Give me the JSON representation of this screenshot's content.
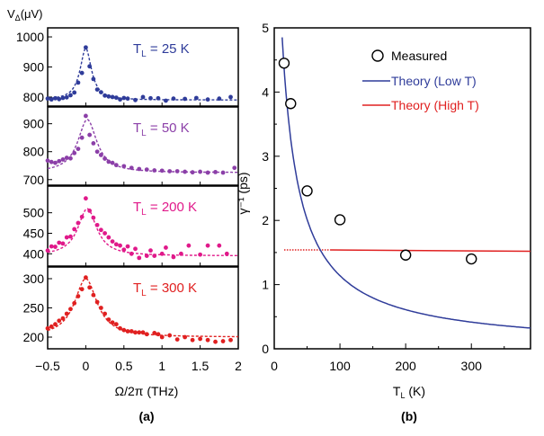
{
  "panel_a": {
    "ylabel_main": "V",
    "ylabel_sub": "Δ",
    "ylabel_unit": "(μV)",
    "xlabel": "Ω/2π (THz)",
    "panel_label": "(a)",
    "x_ticks": [
      "−0.5",
      "0",
      "0.5",
      "1",
      "1.5",
      "2"
    ]
  },
  "panel_b": {
    "ylabel": "γ⁻¹ (ps)",
    "xlabel_main": "T",
    "xlabel_sub": "L",
    "xlabel_unit": " (K)",
    "panel_label": "(b)",
    "x_ticks": [
      "0",
      "100",
      "200",
      "300"
    ],
    "y_ticks": [
      "0",
      "1",
      "2",
      "3",
      "4",
      "5"
    ],
    "legend": {
      "measured": "Measured",
      "low": "Theory (Low T)",
      "high": "Theory (High T)"
    }
  },
  "chart_data": [
    {
      "type": "scatter",
      "title": "T_L = 25 K",
      "label_main": "T",
      "label_sub": "L",
      "label_value": " = 25 K",
      "color": "#2f3c9a",
      "xlabel": "Ω/2π (THz)",
      "ylabel": "V_Δ (μV)",
      "xlim": [
        -0.5,
        2.0
      ],
      "ylim": [
        770,
        1030
      ],
      "y_ticks": [
        800,
        900,
        1000
      ],
      "fit": {
        "base": 790,
        "amp": 172,
        "x0": 0.0,
        "gamma": 0.09
      },
      "points": [
        [
          -0.5,
          795
        ],
        [
          -0.45,
          792
        ],
        [
          -0.4,
          796
        ],
        [
          -0.35,
          793
        ],
        [
          -0.3,
          797
        ],
        [
          -0.25,
          799
        ],
        [
          -0.2,
          806
        ],
        [
          -0.15,
          815
        ],
        [
          -0.1,
          848
        ],
        [
          -0.05,
          880
        ],
        [
          0.0,
          965
        ],
        [
          0.05,
          902
        ],
        [
          0.1,
          860
        ],
        [
          0.15,
          825
        ],
        [
          0.2,
          816
        ],
        [
          0.25,
          805
        ],
        [
          0.3,
          802
        ],
        [
          0.35,
          800
        ],
        [
          0.4,
          798
        ],
        [
          0.45,
          792
        ],
        [
          0.5,
          797
        ],
        [
          0.55,
          795
        ],
        [
          0.65,
          790
        ],
        [
          0.75,
          800
        ],
        [
          0.85,
          796
        ],
        [
          0.95,
          796
        ],
        [
          1.05,
          788
        ],
        [
          1.15,
          795
        ],
        [
          1.3,
          794
        ],
        [
          1.45,
          797
        ],
        [
          1.6,
          792
        ],
        [
          1.75,
          795
        ],
        [
          1.9,
          800
        ]
      ]
    },
    {
      "type": "scatter",
      "title": "T_L = 50 K",
      "label_main": "T",
      "label_sub": "L",
      "label_value": " = 50 K",
      "color": "#8b3fa8",
      "xlabel": "Ω/2π (THz)",
      "ylabel": "V_Δ (μV)",
      "xlim": [
        -0.5,
        2.0
      ],
      "ylim": [
        680,
        960
      ],
      "y_ticks": [
        700,
        800,
        900
      ],
      "fit": {
        "base": 725,
        "amp": 190,
        "x0": 0.02,
        "gamma": 0.15
      },
      "points": [
        [
          -0.5,
          768
        ],
        [
          -0.45,
          763
        ],
        [
          -0.4,
          760
        ],
        [
          -0.35,
          766
        ],
        [
          -0.3,
          772
        ],
        [
          -0.25,
          778
        ],
        [
          -0.2,
          776
        ],
        [
          -0.15,
          795
        ],
        [
          -0.1,
          810
        ],
        [
          -0.05,
          850
        ],
        [
          0.0,
          928
        ],
        [
          0.05,
          860
        ],
        [
          0.1,
          830
        ],
        [
          0.15,
          800
        ],
        [
          0.2,
          788
        ],
        [
          0.25,
          775
        ],
        [
          0.3,
          764
        ],
        [
          0.35,
          760
        ],
        [
          0.4,
          752
        ],
        [
          0.5,
          748
        ],
        [
          0.6,
          742
        ],
        [
          0.7,
          738
        ],
        [
          0.8,
          736
        ],
        [
          0.9,
          733
        ],
        [
          1.0,
          732
        ],
        [
          1.1,
          730
        ],
        [
          1.2,
          730
        ],
        [
          1.3,
          728
        ],
        [
          1.4,
          726
        ],
        [
          1.5,
          728
        ],
        [
          1.6,
          725
        ],
        [
          1.7,
          727
        ],
        [
          1.8,
          725
        ],
        [
          1.95,
          742
        ]
      ]
    },
    {
      "type": "scatter",
      "title": "T_L = 200 K",
      "label_main": "T",
      "label_sub": "L",
      "label_value": " = 200 K",
      "color": "#e0198a",
      "xlabel": "Ω/2π (THz)",
      "ylabel": "V_Δ (μV)",
      "xlim": [
        -0.5,
        2.0
      ],
      "ylim": [
        370,
        565
      ],
      "y_ticks": [
        400,
        450,
        500
      ],
      "fit": {
        "base": 395,
        "amp": 115,
        "x0": 0.02,
        "gamma": 0.15
      },
      "points": [
        [
          -0.5,
          408
        ],
        [
          -0.45,
          418
        ],
        [
          -0.4,
          417
        ],
        [
          -0.35,
          427
        ],
        [
          -0.3,
          425
        ],
        [
          -0.25,
          440
        ],
        [
          -0.2,
          442
        ],
        [
          -0.15,
          460
        ],
        [
          -0.1,
          475
        ],
        [
          -0.05,
          490
        ],
        [
          0.0,
          535
        ],
        [
          0.05,
          505
        ],
        [
          0.1,
          488
        ],
        [
          0.15,
          470
        ],
        [
          0.2,
          458
        ],
        [
          0.25,
          450
        ],
        [
          0.3,
          440
        ],
        [
          0.35,
          430
        ],
        [
          0.4,
          423
        ],
        [
          0.45,
          420
        ],
        [
          0.5,
          410
        ],
        [
          0.55,
          418
        ],
        [
          0.6,
          400
        ],
        [
          0.65,
          412
        ],
        [
          0.7,
          390
        ],
        [
          0.8,
          395
        ],
        [
          0.85,
          408
        ],
        [
          0.9,
          395
        ],
        [
          1.0,
          400
        ],
        [
          1.05,
          415
        ],
        [
          1.15,
          392
        ],
        [
          1.25,
          400
        ],
        [
          1.35,
          420
        ],
        [
          1.5,
          398
        ],
        [
          1.6,
          420
        ],
        [
          1.75,
          420
        ],
        [
          1.85,
          400
        ]
      ]
    },
    {
      "type": "scatter",
      "title": "T_L = 300 K",
      "label_main": "T",
      "label_sub": "L",
      "label_value": " = 300 K",
      "color": "#e02020",
      "xlabel": "Ω/2π (THz)",
      "ylabel": "V_Δ (μV)",
      "xlim": [
        -0.5,
        2.0
      ],
      "ylim": [
        180,
        320
      ],
      "y_ticks": [
        200,
        250,
        300
      ],
      "fit": {
        "base": 200,
        "amp": 100,
        "x0": 0.0,
        "gamma": 0.18
      },
      "points": [
        [
          -0.5,
          215
        ],
        [
          -0.45,
          218
        ],
        [
          -0.4,
          222
        ],
        [
          -0.35,
          228
        ],
        [
          -0.3,
          232
        ],
        [
          -0.25,
          240
        ],
        [
          -0.2,
          248
        ],
        [
          -0.15,
          258
        ],
        [
          -0.1,
          270
        ],
        [
          -0.05,
          282
        ],
        [
          0.0,
          302
        ],
        [
          0.05,
          285
        ],
        [
          0.1,
          272
        ],
        [
          0.15,
          260
        ],
        [
          0.2,
          250
        ],
        [
          0.25,
          240
        ],
        [
          0.3,
          230
        ],
        [
          0.35,
          225
        ],
        [
          0.4,
          222
        ],
        [
          0.45,
          215
        ],
        [
          0.5,
          212
        ],
        [
          0.55,
          210
        ],
        [
          0.6,
          210
        ],
        [
          0.65,
          208
        ],
        [
          0.7,
          208
        ],
        [
          0.75,
          208
        ],
        [
          0.8,
          205
        ],
        [
          0.9,
          207
        ],
        [
          0.95,
          205
        ],
        [
          1.0,
          200
        ],
        [
          1.1,
          203
        ],
        [
          1.2,
          196
        ],
        [
          1.3,
          200
        ],
        [
          1.4,
          195
        ],
        [
          1.5,
          197
        ],
        [
          1.6,
          195
        ],
        [
          1.7,
          192
        ],
        [
          1.8,
          193
        ],
        [
          1.9,
          195
        ]
      ]
    },
    {
      "type": "scatter",
      "xlabel": "T_L (K)",
      "ylabel": "γ⁻¹ (ps)",
      "xlim": [
        0,
        390
      ],
      "ylim": [
        0,
        5
      ],
      "x_ticks": [
        0,
        100,
        200,
        300
      ],
      "y_ticks": [
        0,
        1,
        2,
        3,
        4,
        5
      ],
      "legend_position": "top-right",
      "series": [
        {
          "name": "Measured",
          "kind": "markers",
          "x": [
            15,
            25,
            50,
            100,
            200,
            300
          ],
          "y": [
            4.45,
            3.82,
            2.46,
            2.01,
            1.46,
            1.4
          ]
        },
        {
          "name": "Theory (Low T)",
          "kind": "line",
          "color": "#2f3c9a",
          "model": "y = a / (x + b)",
          "a": 131,
          "b": 15,
          "x_range": [
            12,
            390
          ]
        },
        {
          "name": "Theory (High T)",
          "kind": "line",
          "color": "#e02020",
          "x": [
            15,
            85,
            390
          ],
          "y": [
            1.54,
            1.54,
            1.52
          ],
          "dotted_below": 85
        }
      ]
    }
  ]
}
